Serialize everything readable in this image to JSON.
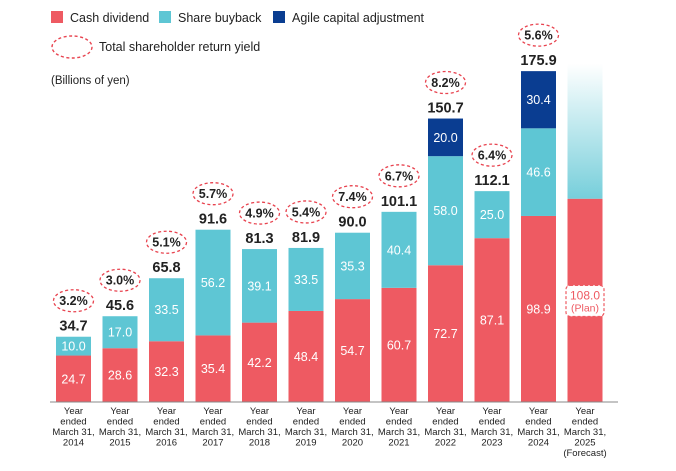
{
  "chart_data": {
    "type": "bar",
    "stacked": true,
    "unit_label": "(Billions of yen)",
    "legend": {
      "cash_dividend": "Cash dividend",
      "share_buyback": "Share buyback",
      "agile": "Agile capital adjustment",
      "yield": "Total shareholder return yield"
    },
    "colors": {
      "cash_dividend": "#ee5a62",
      "share_buyback": "#5ec6d4",
      "agile": "#0a3d91",
      "yield_circle": "#e8434f",
      "plan_text": "#ee5a62"
    },
    "categories": [
      [
        "Year",
        "ended",
        "March 31,",
        "2014"
      ],
      [
        "Year",
        "ended",
        "March 31,",
        "2015"
      ],
      [
        "Year",
        "ended",
        "March 31,",
        "2016"
      ],
      [
        "Year",
        "ended",
        "March 31,",
        "2017"
      ],
      [
        "Year",
        "ended",
        "March 31,",
        "2018"
      ],
      [
        "Year",
        "ended",
        "March 31,",
        "2019"
      ],
      [
        "Year",
        "ended",
        "March 31,",
        "2020"
      ],
      [
        "Year",
        "ended",
        "March 31,",
        "2021"
      ],
      [
        "Year",
        "ended",
        "March 31,",
        "2022"
      ],
      [
        "Year",
        "ended",
        "March 31,",
        "2023"
      ],
      [
        "Year",
        "ended",
        "March 31,",
        "2024"
      ],
      [
        "Year",
        "ended",
        "March 31,",
        "2025",
        "(Forecast)"
      ]
    ],
    "series": [
      {
        "key": "cash_dividend",
        "name": "Cash dividend",
        "values": [
          24.7,
          28.6,
          32.3,
          35.4,
          42.2,
          48.4,
          54.7,
          60.7,
          72.7,
          87.1,
          98.9,
          108.0
        ],
        "labels": [
          "24.7",
          "28.6",
          "32.3",
          "35.4",
          "42.2",
          "48.4",
          "54.7",
          "60.7",
          "72.7",
          "87.1",
          "98.9",
          "108.0"
        ]
      },
      {
        "key": "share_buyback",
        "name": "Share buyback",
        "values": [
          10.0,
          17.0,
          33.5,
          56.2,
          39.1,
          33.5,
          35.3,
          40.4,
          58.0,
          25.0,
          46.6,
          null
        ],
        "labels": [
          "10.0",
          "17.0",
          "33.5",
          "56.2",
          "39.1",
          "33.5",
          "35.3",
          "40.4",
          "58.0",
          "25.0",
          "46.6",
          ""
        ]
      },
      {
        "key": "agile",
        "name": "Agile capital adjustment",
        "values": [
          null,
          null,
          null,
          null,
          null,
          null,
          null,
          null,
          20.0,
          null,
          30.4,
          null
        ],
        "labels": [
          "",
          "",
          "",
          "",
          "",
          "",
          "",
          "",
          "20.0",
          "",
          "30.4",
          ""
        ]
      }
    ],
    "totals": [
      "34.7",
      "45.6",
      "65.8",
      "91.6",
      "81.3",
      "81.9",
      "90.0",
      "101.1",
      "150.7",
      "112.1",
      "175.9",
      ""
    ],
    "yields": [
      "3.2%",
      "3.0%",
      "5.1%",
      "5.7%",
      "4.9%",
      "5.4%",
      "7.4%",
      "6.7%",
      "8.2%",
      "6.4%",
      "5.6%",
      ""
    ],
    "plan_label": "(Plan)",
    "forecast_bar_index": 11,
    "forecast_total_range": [
      108.0,
      180.0
    ],
    "ylim": [
      0,
      190
    ]
  }
}
